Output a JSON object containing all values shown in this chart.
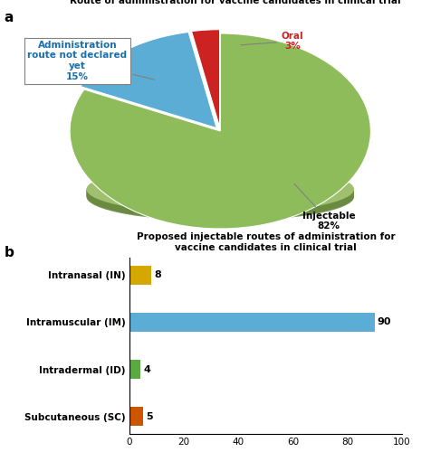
{
  "pie_title": "Route of administration for vaccine candidates in clinical trial",
  "pie_values": [
    82,
    15,
    3
  ],
  "pie_colors": [
    "#8fbc5a",
    "#5badd6",
    "#cc2222"
  ],
  "pie_explode": [
    0,
    0.04,
    0.04
  ],
  "bar_title": "Proposed injectable routes of administration for\nvaccine candidates in clinical trial",
  "bar_categories": [
    "Intranasal (IN)",
    "Intramuscular (IM)",
    "Intradermal (ID)",
    "Subcutaneous (SC)"
  ],
  "bar_values": [
    8,
    90,
    4,
    5
  ],
  "bar_colors": [
    "#d4a800",
    "#5badd6",
    "#5aaa44",
    "#cc5500"
  ],
  "bar_xlim": [
    0,
    100
  ],
  "bar_xticks": [
    0,
    20,
    40,
    60,
    80,
    100
  ],
  "label_a": "a",
  "label_b": "b",
  "ann_not_declared_text": "Administration\nroute not declared\nyet\n15%",
  "ann_not_declared_color": "#1a6fab",
  "ann_oral_text": "Oral\n3%",
  "ann_oral_color": "#cc2222",
  "ann_injectable_text": "Injectable\n82%",
  "ann_injectable_color": "black"
}
